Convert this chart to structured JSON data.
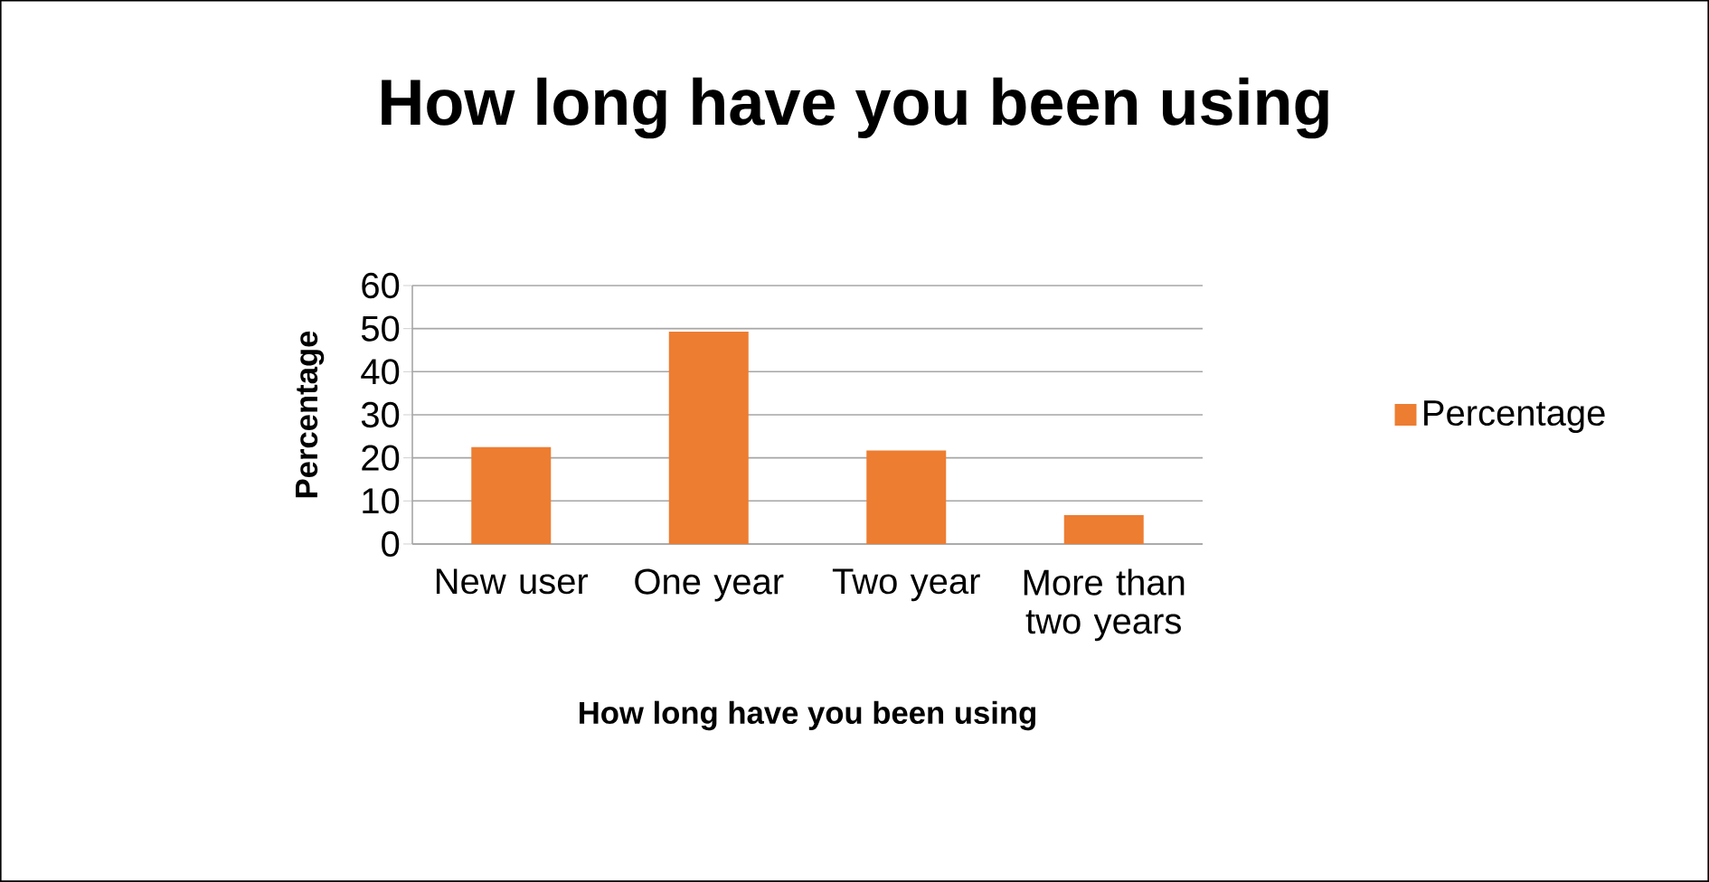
{
  "chart_data": {
    "type": "bar",
    "title": "How long have you been using",
    "xlabel": "How long have you been using",
    "ylabel": "Percentage",
    "categories": [
      "New user",
      "One year",
      "Two year",
      "More than two years"
    ],
    "series": [
      {
        "name": "Percentage",
        "color": "#ed7d31",
        "values": [
          22.5,
          49.3,
          21.7,
          6.7
        ]
      }
    ],
    "ylim": [
      0,
      60
    ],
    "yticks": [
      0,
      10,
      20,
      30,
      40,
      50,
      60
    ],
    "grid": "y",
    "legend": "right"
  }
}
